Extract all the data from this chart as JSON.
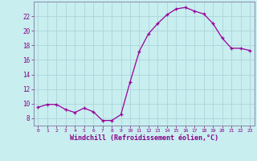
{
  "x": [
    0,
    1,
    2,
    3,
    4,
    5,
    6,
    7,
    8,
    9,
    10,
    11,
    12,
    13,
    14,
    15,
    16,
    17,
    18,
    19,
    20,
    21,
    22,
    23
  ],
  "y": [
    9.5,
    9.9,
    9.9,
    9.2,
    8.8,
    9.4,
    8.9,
    7.7,
    7.7,
    8.5,
    13.0,
    17.2,
    19.6,
    21.0,
    22.2,
    23.0,
    23.2,
    22.7,
    22.3,
    21.0,
    19.0,
    17.6,
    17.6,
    17.3
  ],
  "line_color": "#990099",
  "marker": "+",
  "background_color": "#c8eef0",
  "grid_color": "#b0d8dc",
  "xlabel": "Windchill (Refroidissement éolien,°C)",
  "ylim": [
    7,
    24
  ],
  "yticks": [
    8,
    10,
    12,
    14,
    16,
    18,
    20,
    22
  ],
  "xticks": [
    0,
    1,
    2,
    3,
    4,
    5,
    6,
    7,
    8,
    9,
    10,
    11,
    12,
    13,
    14,
    15,
    16,
    17,
    18,
    19,
    20,
    21,
    22,
    23
  ],
  "xlim": [
    -0.5,
    23.5
  ],
  "tick_color": "#880088",
  "label_color": "#880088",
  "spine_color": "#8888aa"
}
